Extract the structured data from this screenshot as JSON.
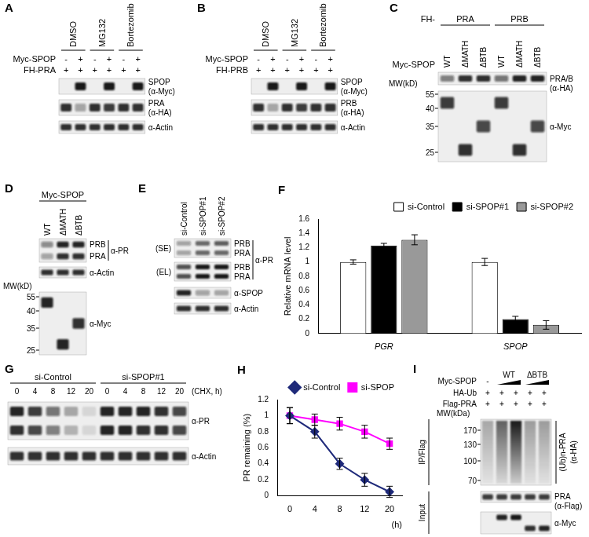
{
  "figure": {
    "A": {
      "label": "A",
      "conditions": [
        "DMSO",
        "MG132",
        "Bortezomib"
      ],
      "rows": [
        {
          "label": "Myc-SPOP",
          "signs": [
            "-",
            "+",
            "-",
            "+",
            "-",
            "+"
          ]
        },
        {
          "label": "FH-PRA",
          "signs": [
            "+",
            "+",
            "+",
            "+",
            "+",
            "+"
          ]
        }
      ],
      "blots": [
        {
          "labels": [
            "SPOP",
            "(α-Myc)"
          ],
          "bands": [
            [
              0,
              0.95,
              0,
              0.95,
              0,
              0.95
            ]
          ]
        },
        {
          "labels": [
            "PRA",
            "(α-HA)"
          ],
          "bands": [
            [
              0.85,
              0.35,
              0.85,
              0.8,
              0.85,
              0.85
            ]
          ]
        },
        {
          "labels": [
            "α-Actin"
          ],
          "bands": [
            [
              0.85,
              0.85,
              0.85,
              0.85,
              0.85,
              0.85
            ]
          ]
        }
      ]
    },
    "B": {
      "label": "B",
      "conditions": [
        "DMSO",
        "MG132",
        "Bortezomib"
      ],
      "rows": [
        {
          "label": "Myc-SPOP",
          "signs": [
            "-",
            "+",
            "-",
            "+",
            "-",
            "+"
          ]
        },
        {
          "label": "FH-PRB",
          "signs": [
            "+",
            "+",
            "+",
            "+",
            "+",
            "+"
          ]
        }
      ],
      "blots": [
        {
          "labels": [
            "SPOP",
            "(α-Myc)"
          ],
          "bands": [
            [
              0,
              0.95,
              0,
              0.95,
              0,
              0.95
            ]
          ]
        },
        {
          "labels": [
            "PRB",
            "(α-HA)"
          ],
          "bands": [
            [
              0.85,
              0.3,
              0.85,
              0.8,
              0.85,
              0.85
            ]
          ]
        },
        {
          "labels": [
            "α-Actin"
          ],
          "bands": [
            [
              0.85,
              0.85,
              0.85,
              0.85,
              0.85,
              0.85
            ]
          ]
        }
      ]
    },
    "C": {
      "label": "C",
      "prefix": "FH-",
      "groups": [
        "PRA",
        "PRB"
      ],
      "row_label": "Myc-SPOP",
      "lanes": [
        "WT",
        "ΔMATH",
        "ΔBTB",
        "WT",
        "ΔMATH",
        "ΔBTB"
      ],
      "mw_title": "MW(kD)",
      "markers": [
        55,
        40,
        35,
        25
      ],
      "blots": [
        {
          "labels": [
            "PRA/B",
            "(α-HA)"
          ],
          "bands": [
            [
              0.5,
              0.85,
              0.85,
              0.55,
              0.9,
              0.9
            ]
          ]
        },
        {
          "labels": [
            "α-Myc"
          ],
          "bands": [
            [
              0.8,
              0,
              0,
              0.8,
              0,
              0
            ],
            [
              0,
              0,
              0.75,
              0,
              0,
              0.75
            ],
            [
              0,
              0.85,
              0,
              0,
              0.85,
              0
            ]
          ]
        }
      ]
    },
    "D": {
      "label": "D",
      "header": "Myc-SPOP",
      "lanes": [
        "WT",
        "ΔMATH",
        "ΔBTB"
      ],
      "mw_title": "MW(kD)",
      "markers": [
        55,
        40,
        35,
        25
      ],
      "blots": [
        {
          "labels": [
            "α-PR"
          ],
          "band_names": [
            "PRB",
            "PRA"
          ],
          "bands": [
            [
              0.45,
              0.9,
              0.9
            ],
            [
              0.35,
              0.85,
              0.85
            ]
          ]
        },
        {
          "labels": [
            "α-Actin"
          ],
          "bands": [
            [
              0.85,
              0.85,
              0.85
            ]
          ]
        },
        {
          "labels": [
            "α-Myc"
          ],
          "bands": [
            [
              0.9,
              0,
              0
            ],
            [
              0,
              0,
              0.85
            ],
            [
              0,
              0.9,
              0
            ]
          ]
        }
      ]
    },
    "E": {
      "label": "E",
      "lanes": [
        "si-Control",
        "si-SPOP#1",
        "si-SPOP#2"
      ],
      "bracket_label": "α-PR",
      "blots": [
        {
          "tag": "(SE)",
          "band_names": [
            "PRB",
            "PRA"
          ],
          "bands": [
            [
              0.35,
              0.6,
              0.65
            ],
            [
              0.35,
              0.6,
              0.6
            ]
          ]
        },
        {
          "tag": "(EL)",
          "band_names": [
            "PRB",
            "PRA"
          ],
          "bands": [
            [
              0.7,
              0.95,
              0.95
            ],
            [
              0.7,
              0.95,
              0.95
            ]
          ]
        },
        {
          "labels": [
            "α-SPOP"
          ],
          "bands": [
            [
              0.9,
              0.35,
              0.3
            ]
          ]
        },
        {
          "labels": [
            "α-Actin"
          ],
          "bands": [
            [
              0.85,
              0.85,
              0.85
            ]
          ]
        }
      ]
    },
    "G": {
      "label": "G",
      "groups": [
        "si-Control",
        "si-SPOP#1"
      ],
      "time_title": "(CHX, h)",
      "times": [
        0,
        4,
        8,
        12,
        20,
        0,
        4,
        8,
        12,
        20
      ],
      "blots": [
        {
          "labels": [
            "α-PR"
          ],
          "bands": [
            [
              0.9,
              0.8,
              0.55,
              0.3,
              0.1,
              0.9,
              0.9,
              0.9,
              0.85,
              0.75
            ],
            [
              0.85,
              0.75,
              0.5,
              0.25,
              0.1,
              0.9,
              0.9,
              0.85,
              0.85,
              0.75
            ]
          ]
        },
        {
          "labels": [
            "α-Actin"
          ],
          "bands": [
            [
              0.85,
              0.85,
              0.85,
              0.85,
              0.85,
              0.85,
              0.85,
              0.85,
              0.85,
              0.85
            ]
          ]
        }
      ]
    },
    "I": {
      "label": "I",
      "header": "Myc-SPOP",
      "groups": [
        {
          "text": "-",
          "span": 1
        },
        {
          "text": "WT",
          "span": 2,
          "ramp": true
        },
        {
          "text": "ΔBTB",
          "span": 2,
          "ramp": true
        }
      ],
      "rows": [
        {
          "label": "HA-Ub",
          "signs": [
            "+",
            "+",
            "+",
            "+",
            "+"
          ]
        },
        {
          "label": "Flag-PRA",
          "signs": [
            "+",
            "+",
            "+",
            "+",
            "+"
          ]
        }
      ],
      "mw_title": "MW(kDa)",
      "markers": [
        170,
        130,
        100,
        70
      ],
      "ip": {
        "section": "IP/Flag",
        "labels": [
          "(Ub)n-PRA",
          "(α-HA)"
        ],
        "smear": [
          0.3,
          0.6,
          0.9,
          0.35,
          0.35
        ]
      },
      "input": {
        "section": "Input",
        "blots": [
          {
            "labels": [
              "PRA",
              "(α-Flag)"
            ],
            "bands": [
              [
                0.8,
                0.8,
                0.8,
                0.8,
                0.8
              ]
            ]
          },
          {
            "labels": [
              "α-Myc"
            ],
            "bands": [
              [
                0,
                0.9,
                0.95,
                0,
                0
              ],
              [
                0,
                0,
                0,
                0.85,
                0.9
              ]
            ]
          }
        ]
      }
    }
  },
  "chart_data": [
    {
      "panel": "F",
      "type": "bar",
      "categories": [
        "PGR",
        "SPOP"
      ],
      "y_label": "Relative mRNA level",
      "ylim": [
        0,
        1.6
      ],
      "yticks": [
        0,
        0.2,
        0.4,
        0.6,
        0.8,
        1,
        1.2,
        1.4,
        1.6
      ],
      "grid": false,
      "legend": "top-right",
      "series": [
        {
          "name": "si-Control",
          "color": "#ffffff",
          "values": [
            1,
            1
          ],
          "errors": [
            0.03,
            0.05
          ]
        },
        {
          "name": "si-SPOP#1",
          "color": "#000000",
          "values": [
            1.23,
            0.2
          ],
          "errors": [
            0.03,
            0.04
          ]
        },
        {
          "name": "si-SPOP#2",
          "color": "#999999",
          "values": [
            1.31,
            0.12
          ],
          "errors": [
            0.07,
            0.06
          ]
        }
      ]
    },
    {
      "panel": "H",
      "type": "line",
      "categories": [
        0,
        4,
        8,
        12,
        20
      ],
      "x_label": "(h)",
      "y_label": "PR remaining (%)",
      "ylim": [
        0,
        1.2
      ],
      "yticks": [
        0,
        0.2,
        0.4,
        0.6,
        0.8,
        1,
        1.2
      ],
      "grid": false,
      "legend": "top-right",
      "series": [
        {
          "name": "si-Control",
          "color": "#1f2a7a",
          "marker": "diamond",
          "values": [
            1,
            0.8,
            0.4,
            0.2,
            0.05
          ],
          "errors": [
            0.1,
            0.08,
            0.07,
            0.08,
            0.07
          ]
        },
        {
          "name": "si-SPOP",
          "color": "#ff00ff",
          "marker": "square",
          "values": [
            1,
            0.95,
            0.9,
            0.8,
            0.65
          ],
          "errors": [
            0.1,
            0.07,
            0.08,
            0.08,
            0.07
          ]
        }
      ]
    }
  ]
}
